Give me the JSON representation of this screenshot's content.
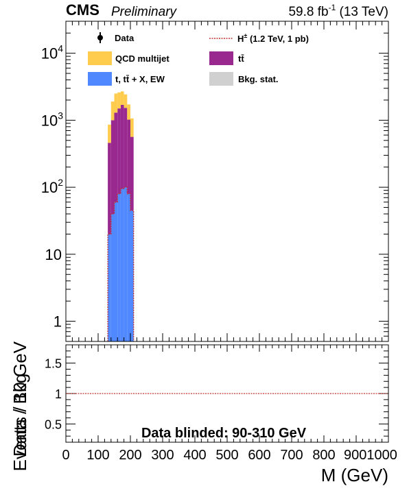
{
  "header": {
    "experiment": "CMS",
    "status": "Preliminary",
    "lumi_value": "59.8 fb",
    "lumi_exp": "-1",
    "energy": " (13 TeV)"
  },
  "legend": {
    "data": "Data",
    "signal_main": "H",
    "signal_sup": "±",
    "signal_rest": " (1.2 TeV, 1 pb)",
    "qcd": "QCD multijet",
    "ttbar": "tt̄",
    "other": "t, tt̄ + X, EW",
    "stat": "Bkg. stat."
  },
  "colors": {
    "qcd": "#ffcc4d",
    "ttbar": "#99298f",
    "other": "#5088ff",
    "stat": "#d0d0d0",
    "signal": "#c03030"
  },
  "annotation": "Data blinded: 90-310 GeV",
  "chart_data": [
    {
      "type": "bar",
      "stacked": true,
      "ylabel": "Events / 10 GeV",
      "xlim": [
        0,
        1000
      ],
      "ylim": [
        0.5,
        30000
      ],
      "log_y": true,
      "bin_width": 10,
      "bin_edges": [
        130,
        140,
        150,
        160,
        170,
        180,
        190,
        200,
        210
      ],
      "series": [
        {
          "name": "t, tt̄ + X, EW",
          "values": [
            20,
            40,
            60,
            80,
            95,
            100,
            80,
            45
          ]
        },
        {
          "name": "tt̄",
          "values": [
            440,
            960,
            1240,
            1420,
            1600,
            1430,
            940,
            520
          ]
        },
        {
          "name": "QCD multijet",
          "values": [
            400,
            900,
            1200,
            1100,
            1000,
            900,
            700,
            500
          ]
        }
      ],
      "signal": {
        "name": "H± (1.2 TeV, 1 pb)",
        "values": [
          20,
          40,
          60,
          80,
          95,
          100,
          80,
          45
        ]
      },
      "y_ticks": [
        {
          "v": 1,
          "base": "1",
          "exp": ""
        },
        {
          "v": 10,
          "base": "10",
          "exp": ""
        },
        {
          "v": 100,
          "base": "10",
          "exp": "2"
        },
        {
          "v": 1000,
          "base": "10",
          "exp": "3"
        },
        {
          "v": 10000,
          "base": "10",
          "exp": "4"
        }
      ]
    },
    {
      "type": "line",
      "xlabel": "M (GeV)",
      "ylabel": "Data / Bkg",
      "xlim": [
        0,
        1000
      ],
      "ylim": [
        0.2,
        1.8
      ],
      "reference_line": 1,
      "y_ticks": [
        "0.5",
        "1",
        "1.5"
      ],
      "x_ticks": [
        "0",
        "100",
        "200",
        "300",
        "400",
        "500",
        "600",
        "700",
        "800",
        "9001000"
      ]
    }
  ]
}
